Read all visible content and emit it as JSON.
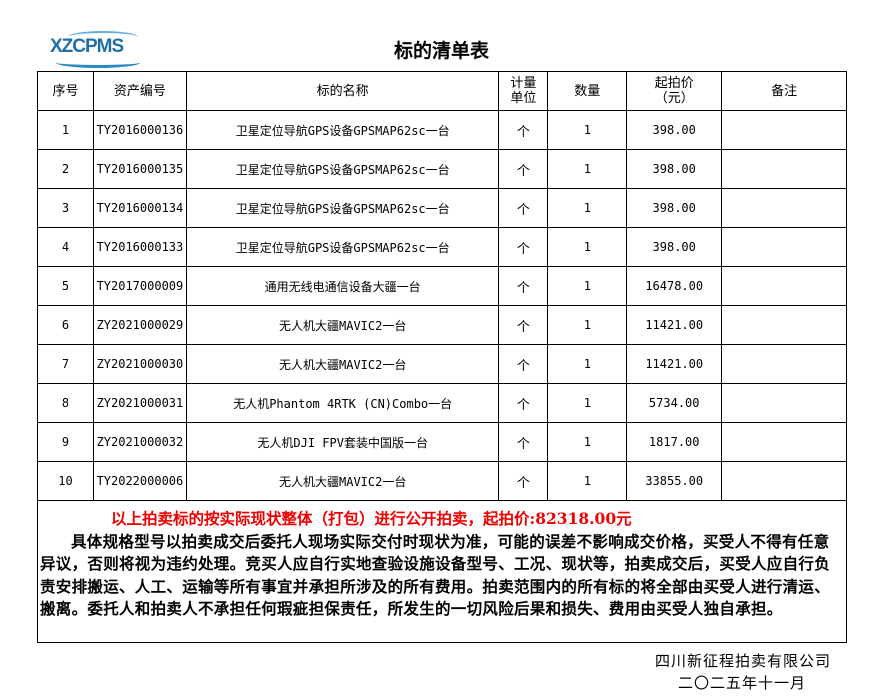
{
  "logo": {
    "text": "XZCPMS"
  },
  "title": "标的清单表",
  "columns": [
    "序号",
    "资产编号",
    "标的名称",
    "计量\n单位",
    "数量",
    "起拍价\n（元）",
    "备注"
  ],
  "rows": [
    [
      "1",
      "TY2016000136",
      "卫星定位导航GPS设备GPSMAP62sc一台",
      "个",
      "1",
      "398.00",
      ""
    ],
    [
      "2",
      "TY2016000135",
      "卫星定位导航GPS设备GPSMAP62sc一台",
      "个",
      "1",
      "398.00",
      ""
    ],
    [
      "3",
      "TY2016000134",
      "卫星定位导航GPS设备GPSMAP62sc一台",
      "个",
      "1",
      "398.00",
      ""
    ],
    [
      "4",
      "TY2016000133",
      "卫星定位导航GPS设备GPSMAP62sc一台",
      "个",
      "1",
      "398.00",
      ""
    ],
    [
      "5",
      "TY2017000009",
      "通用无线电通信设备大疆一台",
      "个",
      "1",
      "16478.00",
      ""
    ],
    [
      "6",
      "ZY2021000029",
      "无人机大疆MAVIC2一台",
      "个",
      "1",
      "11421.00",
      ""
    ],
    [
      "7",
      "ZY2021000030",
      "无人机大疆MAVIC2一台",
      "个",
      "1",
      "11421.00",
      ""
    ],
    [
      "8",
      "ZY2021000031",
      "无人机Phantom 4RTK (CN)Combo一台",
      "个",
      "1",
      "5734.00",
      ""
    ],
    [
      "9",
      "ZY2021000032",
      "无人机DJI FPV套装中国版一台",
      "个",
      "1",
      "1817.00",
      ""
    ],
    [
      "10",
      "TY2022000006",
      "无人机大疆MAVIC2一台",
      "个",
      "1",
      "33855.00",
      ""
    ]
  ],
  "notes": {
    "headline": "以上拍卖标的按实际现状整体（打包）进行公开拍卖，起拍价:82318.00元",
    "body": "具体规格型号以拍卖成交后委托人现场实际交付时现状为准，可能的误差不影响成交价格，买受人不得有任意异议，否则将视为违约处理。竞买人应自行实地查验设施设备型号、工况、现状等，拍卖成交后，买受人应自行负责安排搬运、人工、运输等所有事宜并承担所涉及的所有费用。拍卖范围内的所有标的将全部由买受人进行清运、搬离。委托人和拍卖人不承担任何瑕疵担保责任，所发生的一切风险后果和损失、费用由买受人独自承担。"
  },
  "signature": {
    "company": "四川新征程拍卖有限公司",
    "date": "二〇二五年十一月"
  },
  "colors": {
    "headline": "#ee0000",
    "logo": "#1f6fa8"
  }
}
